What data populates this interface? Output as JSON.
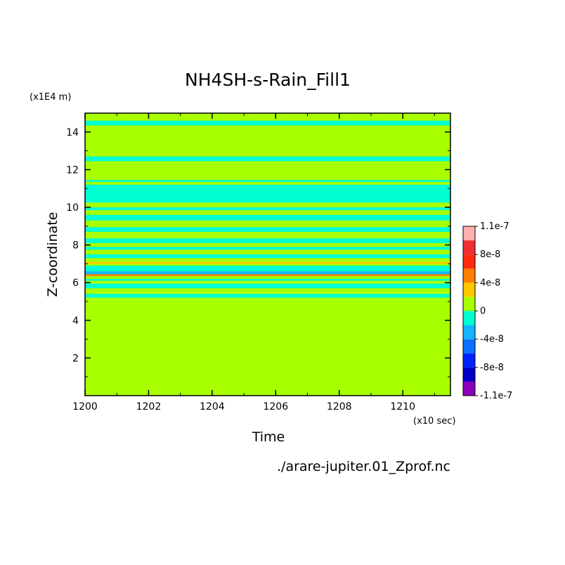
{
  "chart_data": {
    "type": "heatmap",
    "title": "NH4SH-s-Rain_Fill1",
    "xlabel": "Time",
    "ylabel": "Z-coordinate",
    "x_unit": "(x10 sec)",
    "y_unit": "(x1E4 m)",
    "footer": "./arare-jupiter.01_Zprof.nc",
    "xlim": [
      1200,
      1211.5
    ],
    "ylim": [
      0,
      15
    ],
    "x_ticks": [
      1200,
      1202,
      1204,
      1206,
      1208,
      1210
    ],
    "y_ticks": [
      2,
      4,
      6,
      8,
      10,
      12,
      14
    ],
    "x_tick_labels": [
      "1200",
      "1202",
      "1204",
      "1206",
      "1208",
      "1210"
    ],
    "y_tick_labels": [
      "2",
      "4",
      "6",
      "8",
      "10",
      "12",
      "14"
    ],
    "colorbar": {
      "levels": [
        -1.1e-07,
        -1e-07,
        -8e-08,
        -6e-08,
        -4e-08,
        -2e-08,
        0,
        2e-08,
        4e-08,
        6e-08,
        8e-08,
        1e-07,
        1.1e-07
      ],
      "colors": [
        "#8a00b8",
        "#0000c8",
        "#0022ff",
        "#0a70ff",
        "#14b4ff",
        "#00ffd2",
        "#a8ff00",
        "#ffc800",
        "#ff8000",
        "#ff2a10",
        "#f02e30",
        "#ffb0b0"
      ],
      "labels": [
        {
          "value": 1.1e-07,
          "text": "1.1e-7"
        },
        {
          "value": 8e-08,
          "text": "8e-8"
        },
        {
          "value": 4e-08,
          "text": "4e-8"
        },
        {
          "value": 0,
          "text": "0"
        },
        {
          "value": -4e-08,
          "text": "-4e-8"
        },
        {
          "value": -8e-08,
          "text": "-8e-8"
        },
        {
          "value": -1.1e-07,
          "text": "-1.1e-7"
        }
      ]
    },
    "background_value": 1e-08,
    "bands": [
      {
        "z": [
          5.2,
          5.4
        ],
        "value": -1e-08
      },
      {
        "z": [
          5.7,
          5.95
        ],
        "value": -1e-08
      },
      {
        "z": [
          6.1,
          6.2
        ],
        "value": -1e-08
      },
      {
        "z": [
          6.35,
          6.45
        ],
        "value": 5e-08
      },
      {
        "z": [
          6.45,
          6.6
        ],
        "value": -3e-08
      },
      {
        "z": [
          6.6,
          6.9
        ],
        "value": -1e-08
      },
      {
        "z": [
          7.0,
          7.1
        ],
        "value": 3e-08
      },
      {
        "z": [
          7.3,
          7.5
        ],
        "value": -1e-08
      },
      {
        "z": [
          7.75,
          7.9
        ],
        "value": -1e-08
      },
      {
        "z": [
          8.1,
          8.35
        ],
        "value": -1e-08
      },
      {
        "z": [
          8.7,
          8.95
        ],
        "value": -1e-08
      },
      {
        "z": [
          9.3,
          9.6
        ],
        "value": -1e-08
      },
      {
        "z": [
          9.85,
          10.0
        ],
        "value": -1e-08
      },
      {
        "z": [
          10.25,
          11.2
        ],
        "value": -1e-08
      },
      {
        "z": [
          11.35,
          11.45
        ],
        "value": -1e-08
      },
      {
        "z": [
          12.45,
          12.7
        ],
        "value": -1e-08
      },
      {
        "z": [
          14.35,
          14.6
        ],
        "value": -1e-08
      }
    ]
  }
}
